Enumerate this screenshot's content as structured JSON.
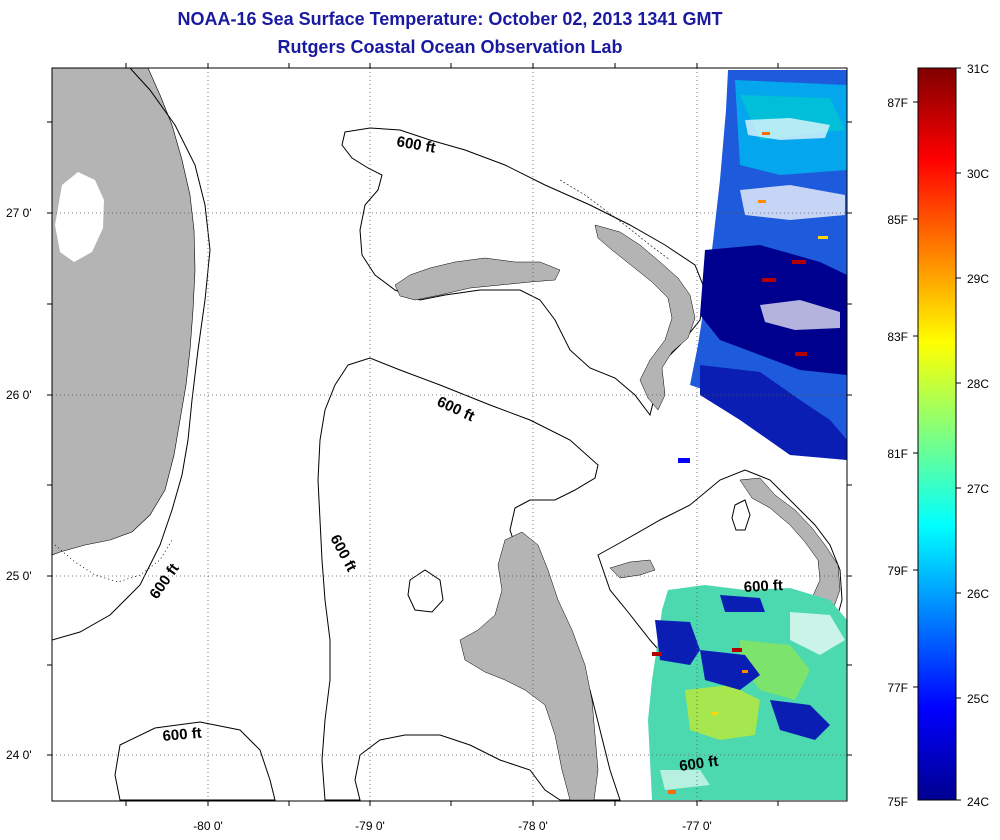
{
  "title": "NOAA-16 Sea Surface Temperature:  October 02, 2013 1341 GMT",
  "subtitle": "Rutgers Coastal Ocean Observation Lab",
  "longitude_ticks": [
    "-80 0'",
    "-79 0'",
    "-78 0'",
    "-77 0'"
  ],
  "latitude_ticks": [
    "27 0'",
    "26 0'",
    "25 0'",
    "24 0'"
  ],
  "contour_labels": [
    "600 ft",
    "600 ft",
    "600 ft",
    "600 ft",
    "600 ft",
    "600 ft"
  ],
  "colorbar": {
    "celsius_labels": [
      "31C",
      "30C",
      "29C",
      "28C",
      "27C",
      "26C",
      "25C",
      "24C"
    ],
    "fahrenheit_labels": [
      "87F",
      "85F",
      "83F",
      "81F",
      "79F",
      "77F",
      "75F"
    ]
  },
  "colors": {
    "title": "#1a1aa0",
    "land": "#b4b4b4",
    "frame": "#000000"
  }
}
